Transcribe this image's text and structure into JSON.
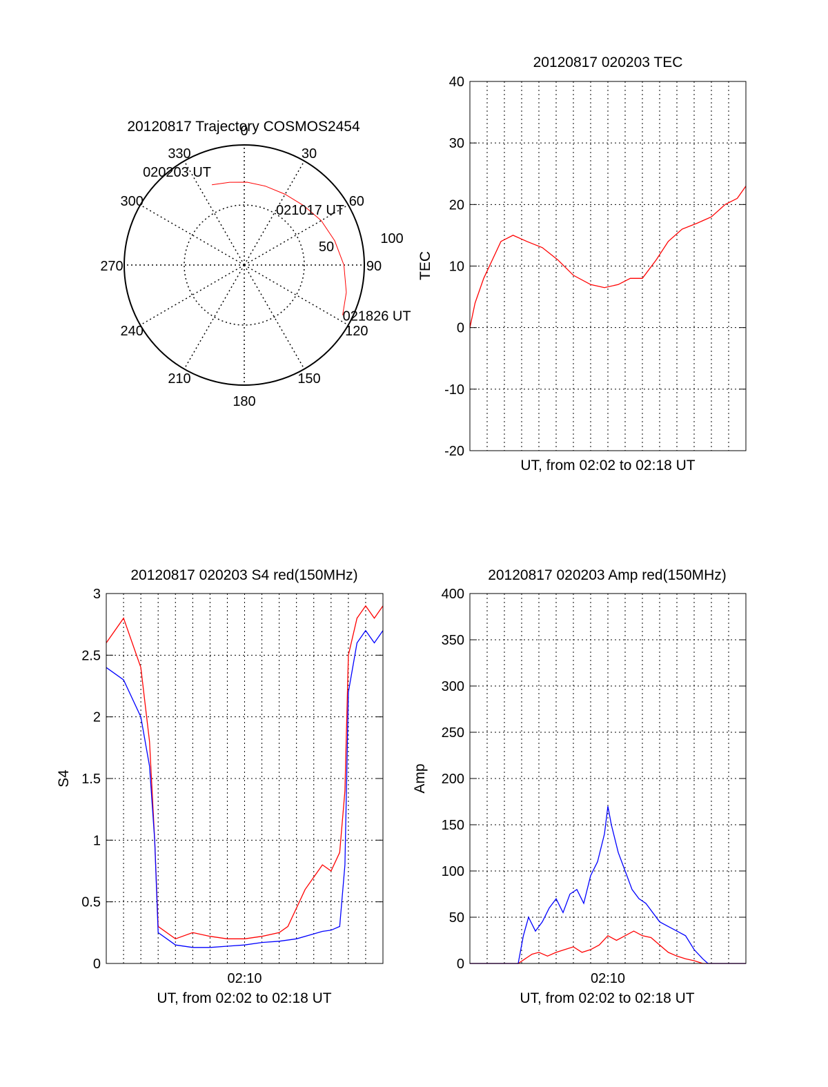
{
  "colors": {
    "red": "#ff0000",
    "blue": "#0000ff",
    "black": "#000000",
    "grid": "#000000"
  },
  "chart_data": [
    {
      "type": "polar",
      "title": "20120817 Trajectory COSMOS2454",
      "angle_labels": [
        "0",
        "30",
        "60",
        "90",
        "120",
        "150",
        "180",
        "210",
        "240",
        "270",
        "300",
        "330"
      ],
      "ring_labels": [
        {
          "text": "50"
        },
        {
          "text": "100"
        }
      ],
      "r_max": 100,
      "trajectory": {
        "azimuth": [
          -22,
          -10,
          2,
          15,
          30,
          45,
          60,
          75,
          90,
          105,
          117
        ],
        "radius": [
          72,
          70,
          69,
          68,
          68,
          70,
          74,
          78,
          83,
          88,
          92
        ]
      },
      "annotations": [
        {
          "text": "020203 UT",
          "azimuth": -22,
          "radius": 72
        },
        {
          "text": "021017 UT",
          "azimuth": 55,
          "radius": 73
        },
        {
          "text": "021826 UT",
          "azimuth": 117,
          "radius": 92
        }
      ],
      "series_color": "red"
    },
    {
      "type": "line",
      "title": "20120817 020203 TEC",
      "ylabel": "TEC",
      "xlabel": "UT, from 02:02 to 02:18 UT",
      "ylim": [
        -20,
        40
      ],
      "yticks": [
        -20,
        -10,
        0,
        10,
        20,
        30,
        40
      ],
      "xlim": [
        0,
        16
      ],
      "xticks": [],
      "grid": true,
      "series": [
        {
          "color": "red",
          "x": [
            0,
            0.3,
            0.8,
            1.3,
            1.8,
            2.5,
            3.3,
            4.2,
            5.1,
            6.0,
            7.0,
            7.8,
            8.6,
            9.3,
            10.0,
            10.8,
            11.5,
            12.3,
            13.2,
            14.0,
            14.8,
            15.5,
            16.0
          ],
          "y": [
            0,
            4,
            8,
            11,
            14,
            15,
            14,
            13,
            11,
            8.5,
            7,
            6.5,
            7,
            8,
            8,
            11,
            14,
            16,
            17,
            18,
            20,
            21,
            23
          ]
        }
      ]
    },
    {
      "type": "line",
      "title": "20120817 020203 S4 red(150MHz)",
      "ylabel": "S4",
      "xlabel": "UT, from 02:02 to 02:18 UT",
      "ylim": [
        0,
        3
      ],
      "yticks": [
        "0",
        "0.5",
        "1",
        "1.5",
        "2",
        "2.5",
        "3"
      ],
      "xlim": [
        0,
        16
      ],
      "xticks": [
        {
          "value": 8,
          "label": "02:10"
        }
      ],
      "grid": true,
      "series": [
        {
          "color": "red",
          "x": [
            0,
            1,
            2,
            2.5,
            2.8,
            3.0,
            4,
            5,
            6,
            7,
            8,
            9,
            10,
            10.5,
            11,
            11.5,
            12,
            12.5,
            13,
            13.5,
            13.8,
            14,
            14.5,
            15,
            15.5,
            16
          ],
          "y": [
            2.6,
            2.8,
            2.4,
            1.8,
            1.0,
            0.3,
            0.2,
            0.25,
            0.22,
            0.2,
            0.2,
            0.22,
            0.25,
            0.3,
            0.45,
            0.6,
            0.7,
            0.8,
            0.75,
            0.9,
            1.4,
            2.5,
            2.8,
            2.9,
            2.8,
            2.9
          ]
        },
        {
          "color": "blue",
          "x": [
            0,
            1,
            2,
            2.5,
            2.8,
            3.0,
            4,
            5,
            6,
            7,
            8,
            9,
            10,
            11,
            12,
            12.5,
            13,
            13.5,
            13.8,
            14,
            14.5,
            15,
            15.5,
            16
          ],
          "y": [
            2.4,
            2.3,
            2.0,
            1.6,
            1.0,
            0.25,
            0.15,
            0.13,
            0.13,
            0.14,
            0.15,
            0.17,
            0.18,
            0.2,
            0.24,
            0.26,
            0.27,
            0.3,
            0.8,
            2.2,
            2.6,
            2.7,
            2.6,
            2.7
          ]
        }
      ]
    },
    {
      "type": "line",
      "title": "20120817 020203 Amp red(150MHz)",
      "ylabel": "Amp",
      "xlabel": "UT, from 02:02 to 02:18 UT",
      "ylim": [
        0,
        400
      ],
      "yticks": [
        0,
        50,
        100,
        150,
        200,
        250,
        300,
        350,
        400
      ],
      "xlim": [
        0,
        16
      ],
      "xticks": [
        {
          "value": 8,
          "label": "02:10"
        }
      ],
      "grid": true,
      "series": [
        {
          "color": "red",
          "x": [
            0,
            2.8,
            3.2,
            3.6,
            4.0,
            4.5,
            5.0,
            5.5,
            6.0,
            6.5,
            7.0,
            7.5,
            8.0,
            8.5,
            9.0,
            9.5,
            10.0,
            10.5,
            11.0,
            11.5,
            12.0,
            12.5,
            13.0,
            13.5,
            16.0
          ],
          "y": [
            0,
            0,
            5,
            10,
            12,
            8,
            12,
            15,
            18,
            12,
            15,
            20,
            30,
            25,
            30,
            35,
            30,
            28,
            20,
            12,
            8,
            5,
            3,
            0,
            0
          ]
        },
        {
          "color": "blue",
          "x": [
            0,
            2.8,
            3.1,
            3.4,
            3.8,
            4.2,
            4.6,
            5.0,
            5.4,
            5.8,
            6.2,
            6.6,
            7.0,
            7.4,
            7.8,
            8.0,
            8.2,
            8.6,
            9.0,
            9.4,
            9.8,
            10.2,
            10.6,
            11.0,
            11.5,
            12.0,
            12.5,
            13.0,
            13.5,
            13.8,
            16.0
          ],
          "y": [
            0,
            0,
            30,
            50,
            35,
            45,
            60,
            70,
            55,
            75,
            80,
            65,
            95,
            110,
            140,
            170,
            150,
            120,
            100,
            80,
            70,
            65,
            55,
            45,
            40,
            35,
            30,
            15,
            5,
            0,
            0
          ]
        }
      ]
    }
  ]
}
